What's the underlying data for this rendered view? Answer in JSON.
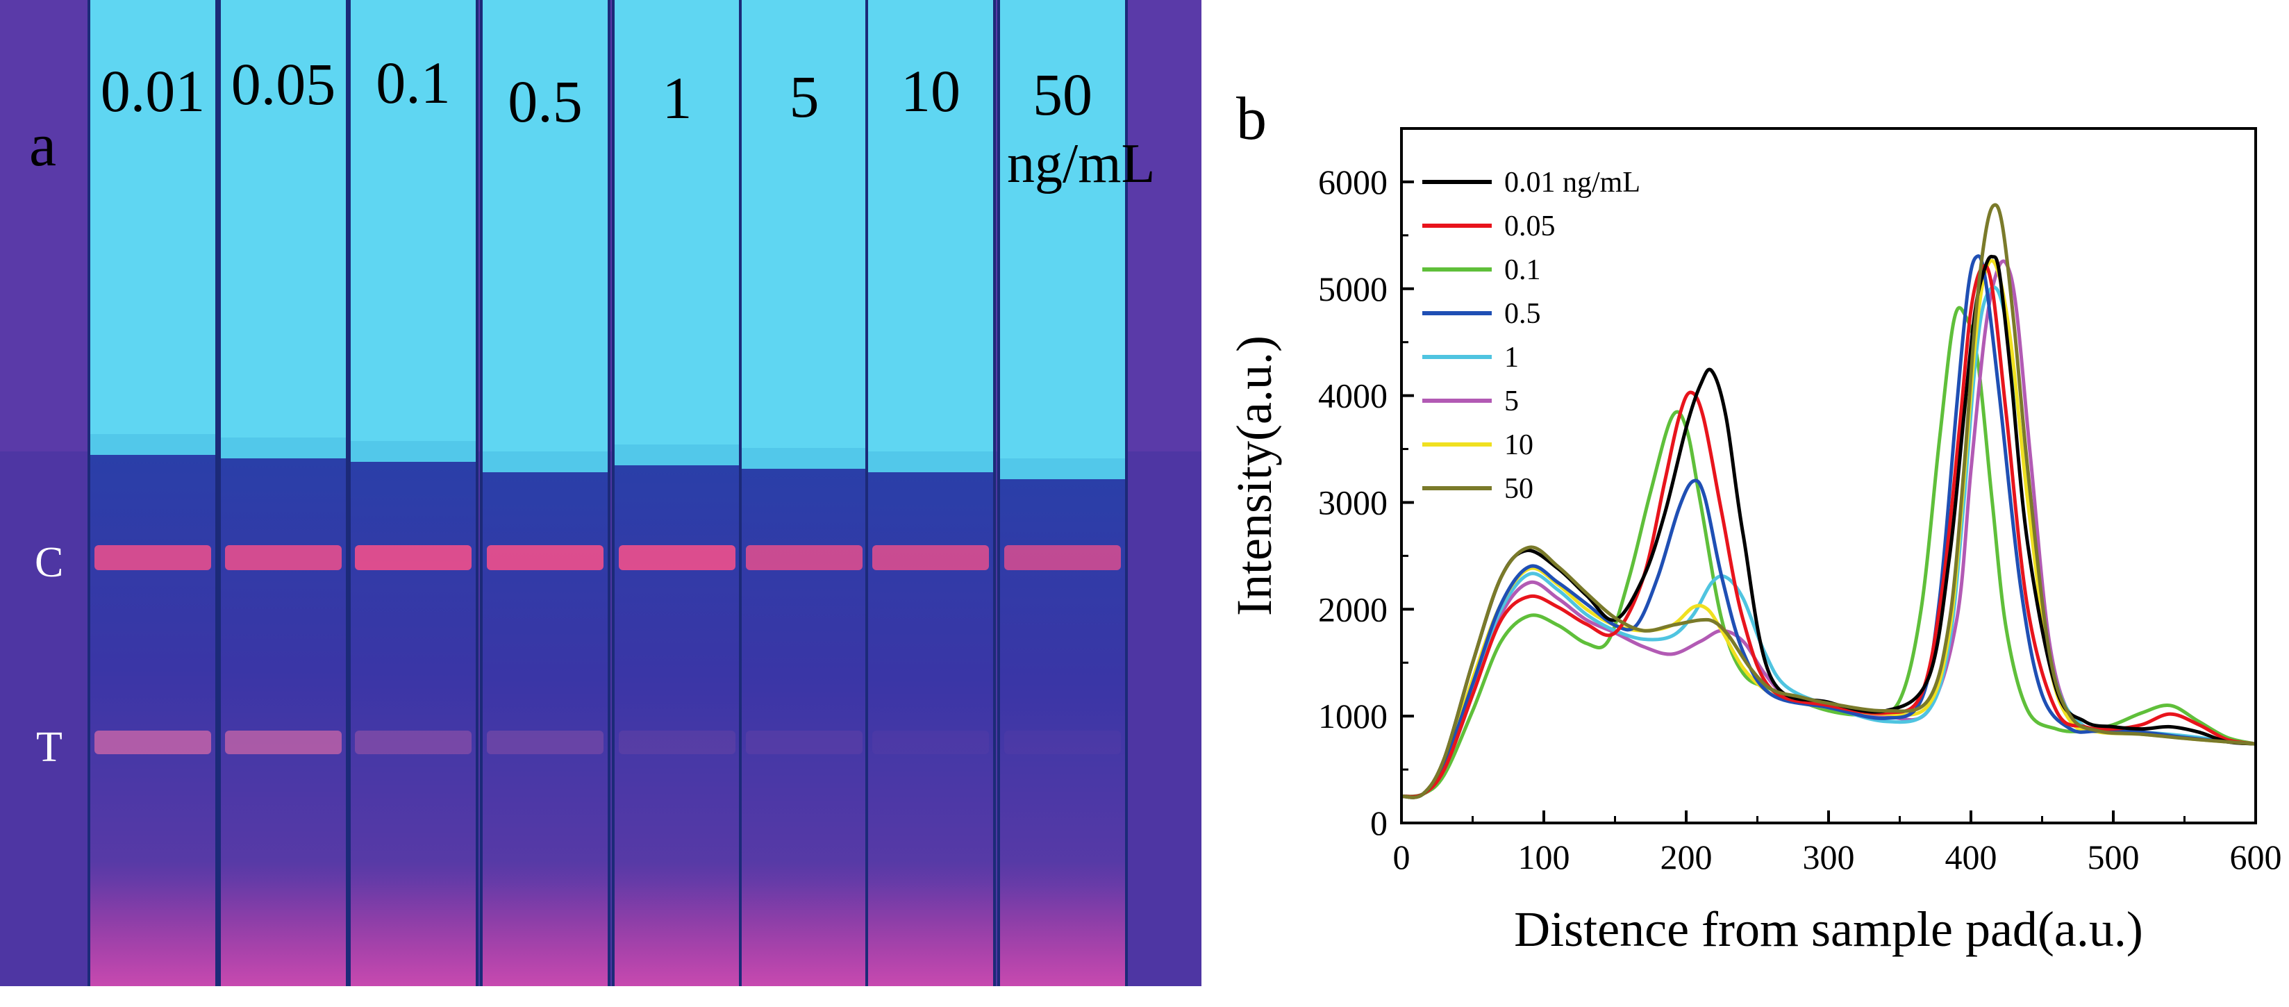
{
  "panel_a": {
    "label": "a",
    "unit": "ng/mL",
    "line_labels": {
      "control": "C",
      "test": "T"
    },
    "strips": [
      {
        "label": "0.01",
        "c_intensity": 0.85,
        "t_intensity": 0.75
      },
      {
        "label": "0.05",
        "c_intensity": 0.85,
        "t_intensity": 0.7
      },
      {
        "label": "0.1",
        "c_intensity": 0.9,
        "t_intensity": 0.35
      },
      {
        "label": "0.5",
        "c_intensity": 0.9,
        "t_intensity": 0.25
      },
      {
        "label": "1",
        "c_intensity": 0.9,
        "t_intensity": 0.12
      },
      {
        "label": "5",
        "c_intensity": 0.8,
        "t_intensity": 0.1
      },
      {
        "label": "10",
        "c_intensity": 0.8,
        "t_intensity": 0.06
      },
      {
        "label": "50",
        "c_intensity": 0.75,
        "t_intensity": 0.05
      }
    ]
  },
  "chart_data": {
    "type": "line",
    "panel_label": "b",
    "title": "",
    "xlabel": "Distence from sample pad(a.u.)",
    "ylabel": "Intensity(a.u.)",
    "xlim": [
      0,
      600
    ],
    "ylim": [
      0,
      6500
    ],
    "xticks": [
      0,
      100,
      200,
      300,
      400,
      500,
      600
    ],
    "yticks": [
      0,
      1000,
      2000,
      3000,
      4000,
      5000,
      6000
    ],
    "legend_position": "top-left",
    "series": [
      {
        "name": "0.01 ng/mL",
        "color": "#000000",
        "x": [
          0,
          15,
          30,
          50,
          70,
          88,
          110,
          130,
          150,
          170,
          185,
          200,
          210,
          218,
          228,
          240,
          260,
          300,
          340,
          370,
          385,
          395,
          403,
          410,
          415,
          420,
          428,
          440,
          460,
          480,
          500,
          520,
          540,
          560,
          580,
          600
        ],
        "y": [
          250,
          270,
          600,
          1500,
          2300,
          2550,
          2380,
          2130,
          1900,
          2300,
          2900,
          3700,
          4100,
          4230,
          3800,
          2700,
          1350,
          1130,
          1050,
          1350,
          2500,
          3800,
          4800,
          5200,
          5300,
          5150,
          4200,
          2600,
          1250,
          950,
          900,
          880,
          900,
          850,
          760,
          740
        ]
      },
      {
        "name": "0.05",
        "color": "#e8141c",
        "x": [
          0,
          15,
          30,
          50,
          70,
          90,
          110,
          130,
          150,
          170,
          185,
          195,
          203,
          212,
          225,
          240,
          260,
          300,
          340,
          365,
          380,
          392,
          400,
          408,
          415,
          425,
          440,
          460,
          480,
          500,
          520,
          540,
          560,
          580,
          600
        ],
        "y": [
          250,
          270,
          500,
          1200,
          1900,
          2120,
          2020,
          1860,
          1780,
          2300,
          3200,
          3800,
          4030,
          3800,
          2900,
          1900,
          1250,
          1100,
          1030,
          1200,
          2200,
          3700,
          4800,
          5200,
          5000,
          3800,
          2000,
          1050,
          900,
          880,
          920,
          1020,
          920,
          780,
          740
        ]
      },
      {
        "name": "0.1",
        "color": "#5fbf3a",
        "x": [
          0,
          15,
          30,
          50,
          70,
          90,
          110,
          130,
          145,
          160,
          175,
          190,
          200,
          210,
          225,
          240,
          260,
          300,
          330,
          350,
          365,
          378,
          388,
          396,
          405,
          415,
          425,
          440,
          460,
          480,
          500,
          520,
          540,
          560,
          580,
          600
        ],
        "y": [
          250,
          270,
          450,
          1050,
          1700,
          1940,
          1850,
          1680,
          1700,
          2300,
          3100,
          3800,
          3700,
          3000,
          1900,
          1400,
          1250,
          1050,
          1020,
          1150,
          2000,
          3600,
          4700,
          4750,
          4300,
          3000,
          1800,
          1050,
          880,
          860,
          920,
          1030,
          1100,
          950,
          800,
          740
        ]
      },
      {
        "name": "0.5",
        "color": "#1f4fb4",
        "x": [
          0,
          15,
          30,
          50,
          70,
          90,
          110,
          130,
          150,
          165,
          180,
          195,
          205,
          213,
          225,
          240,
          260,
          300,
          340,
          365,
          378,
          390,
          398,
          404,
          410,
          420,
          435,
          450,
          470,
          490,
          520,
          550,
          580,
          600
        ],
        "y": [
          250,
          270,
          550,
          1300,
          2050,
          2400,
          2250,
          2050,
          1850,
          1850,
          2300,
          2950,
          3200,
          3050,
          2300,
          1600,
          1200,
          1080,
          980,
          1150,
          2100,
          3900,
          5000,
          5300,
          5100,
          4000,
          2200,
          1200,
          880,
          860,
          850,
          800,
          760,
          740
        ]
      },
      {
        "name": "1",
        "color": "#4fc4e0",
        "x": [
          0,
          15,
          30,
          50,
          70,
          90,
          110,
          130,
          150,
          170,
          190,
          205,
          218,
          228,
          240,
          255,
          270,
          300,
          340,
          370,
          385,
          395,
          403,
          410,
          420,
          430,
          445,
          460,
          480,
          500,
          530,
          560,
          580,
          600
        ],
        "y": [
          250,
          270,
          550,
          1300,
          2000,
          2330,
          2180,
          1950,
          1800,
          1720,
          1750,
          1950,
          2250,
          2300,
          2100,
          1600,
          1280,
          1100,
          950,
          1050,
          1700,
          3000,
          4300,
          4900,
          4950,
          4200,
          2500,
          1300,
          900,
          860,
          840,
          800,
          760,
          740
        ]
      },
      {
        "name": "5",
        "color": "#b25ab4",
        "x": [
          0,
          15,
          30,
          50,
          70,
          90,
          110,
          130,
          150,
          170,
          190,
          210,
          225,
          240,
          255,
          270,
          300,
          340,
          370,
          390,
          400,
          410,
          418,
          425,
          432,
          442,
          455,
          470,
          490,
          520,
          550,
          580,
          600
        ],
        "y": [
          250,
          270,
          500,
          1200,
          1950,
          2250,
          2100,
          1900,
          1780,
          1650,
          1580,
          1700,
          1800,
          1700,
          1400,
          1200,
          1100,
          1000,
          1050,
          1900,
          3300,
          4600,
          5150,
          5230,
          4800,
          3400,
          1700,
          1000,
          860,
          840,
          800,
          760,
          740
        ]
      },
      {
        "name": "10",
        "color": "#f0e020",
        "x": [
          0,
          15,
          30,
          50,
          70,
          90,
          110,
          130,
          150,
          170,
          190,
          205,
          215,
          225,
          240,
          255,
          270,
          300,
          340,
          370,
          385,
          395,
          403,
          410,
          418,
          428,
          440,
          455,
          470,
          490,
          520,
          560,
          600
        ],
        "y": [
          250,
          270,
          550,
          1350,
          2050,
          2380,
          2230,
          2000,
          1850,
          1800,
          1850,
          2020,
          2000,
          1800,
          1450,
          1250,
          1150,
          1080,
          1020,
          1100,
          1800,
          3200,
          4500,
          5150,
          5200,
          4500,
          3000,
          1500,
          950,
          850,
          830,
          780,
          740
        ]
      },
      {
        "name": "50",
        "color": "#7a7a2a",
        "x": [
          0,
          15,
          30,
          50,
          70,
          90,
          110,
          130,
          150,
          170,
          190,
          210,
          220,
          230,
          245,
          260,
          280,
          300,
          340,
          370,
          385,
          395,
          403,
          410,
          416,
          422,
          430,
          440,
          455,
          470,
          490,
          520,
          560,
          600
        ],
        "y": [
          250,
          270,
          600,
          1500,
          2300,
          2580,
          2400,
          2150,
          1920,
          1800,
          1850,
          1900,
          1880,
          1750,
          1450,
          1250,
          1180,
          1120,
          1050,
          1150,
          1900,
          3300,
          4700,
          5500,
          5780,
          5600,
          4700,
          3300,
          1600,
          1000,
          860,
          830,
          780,
          740
        ]
      }
    ]
  }
}
